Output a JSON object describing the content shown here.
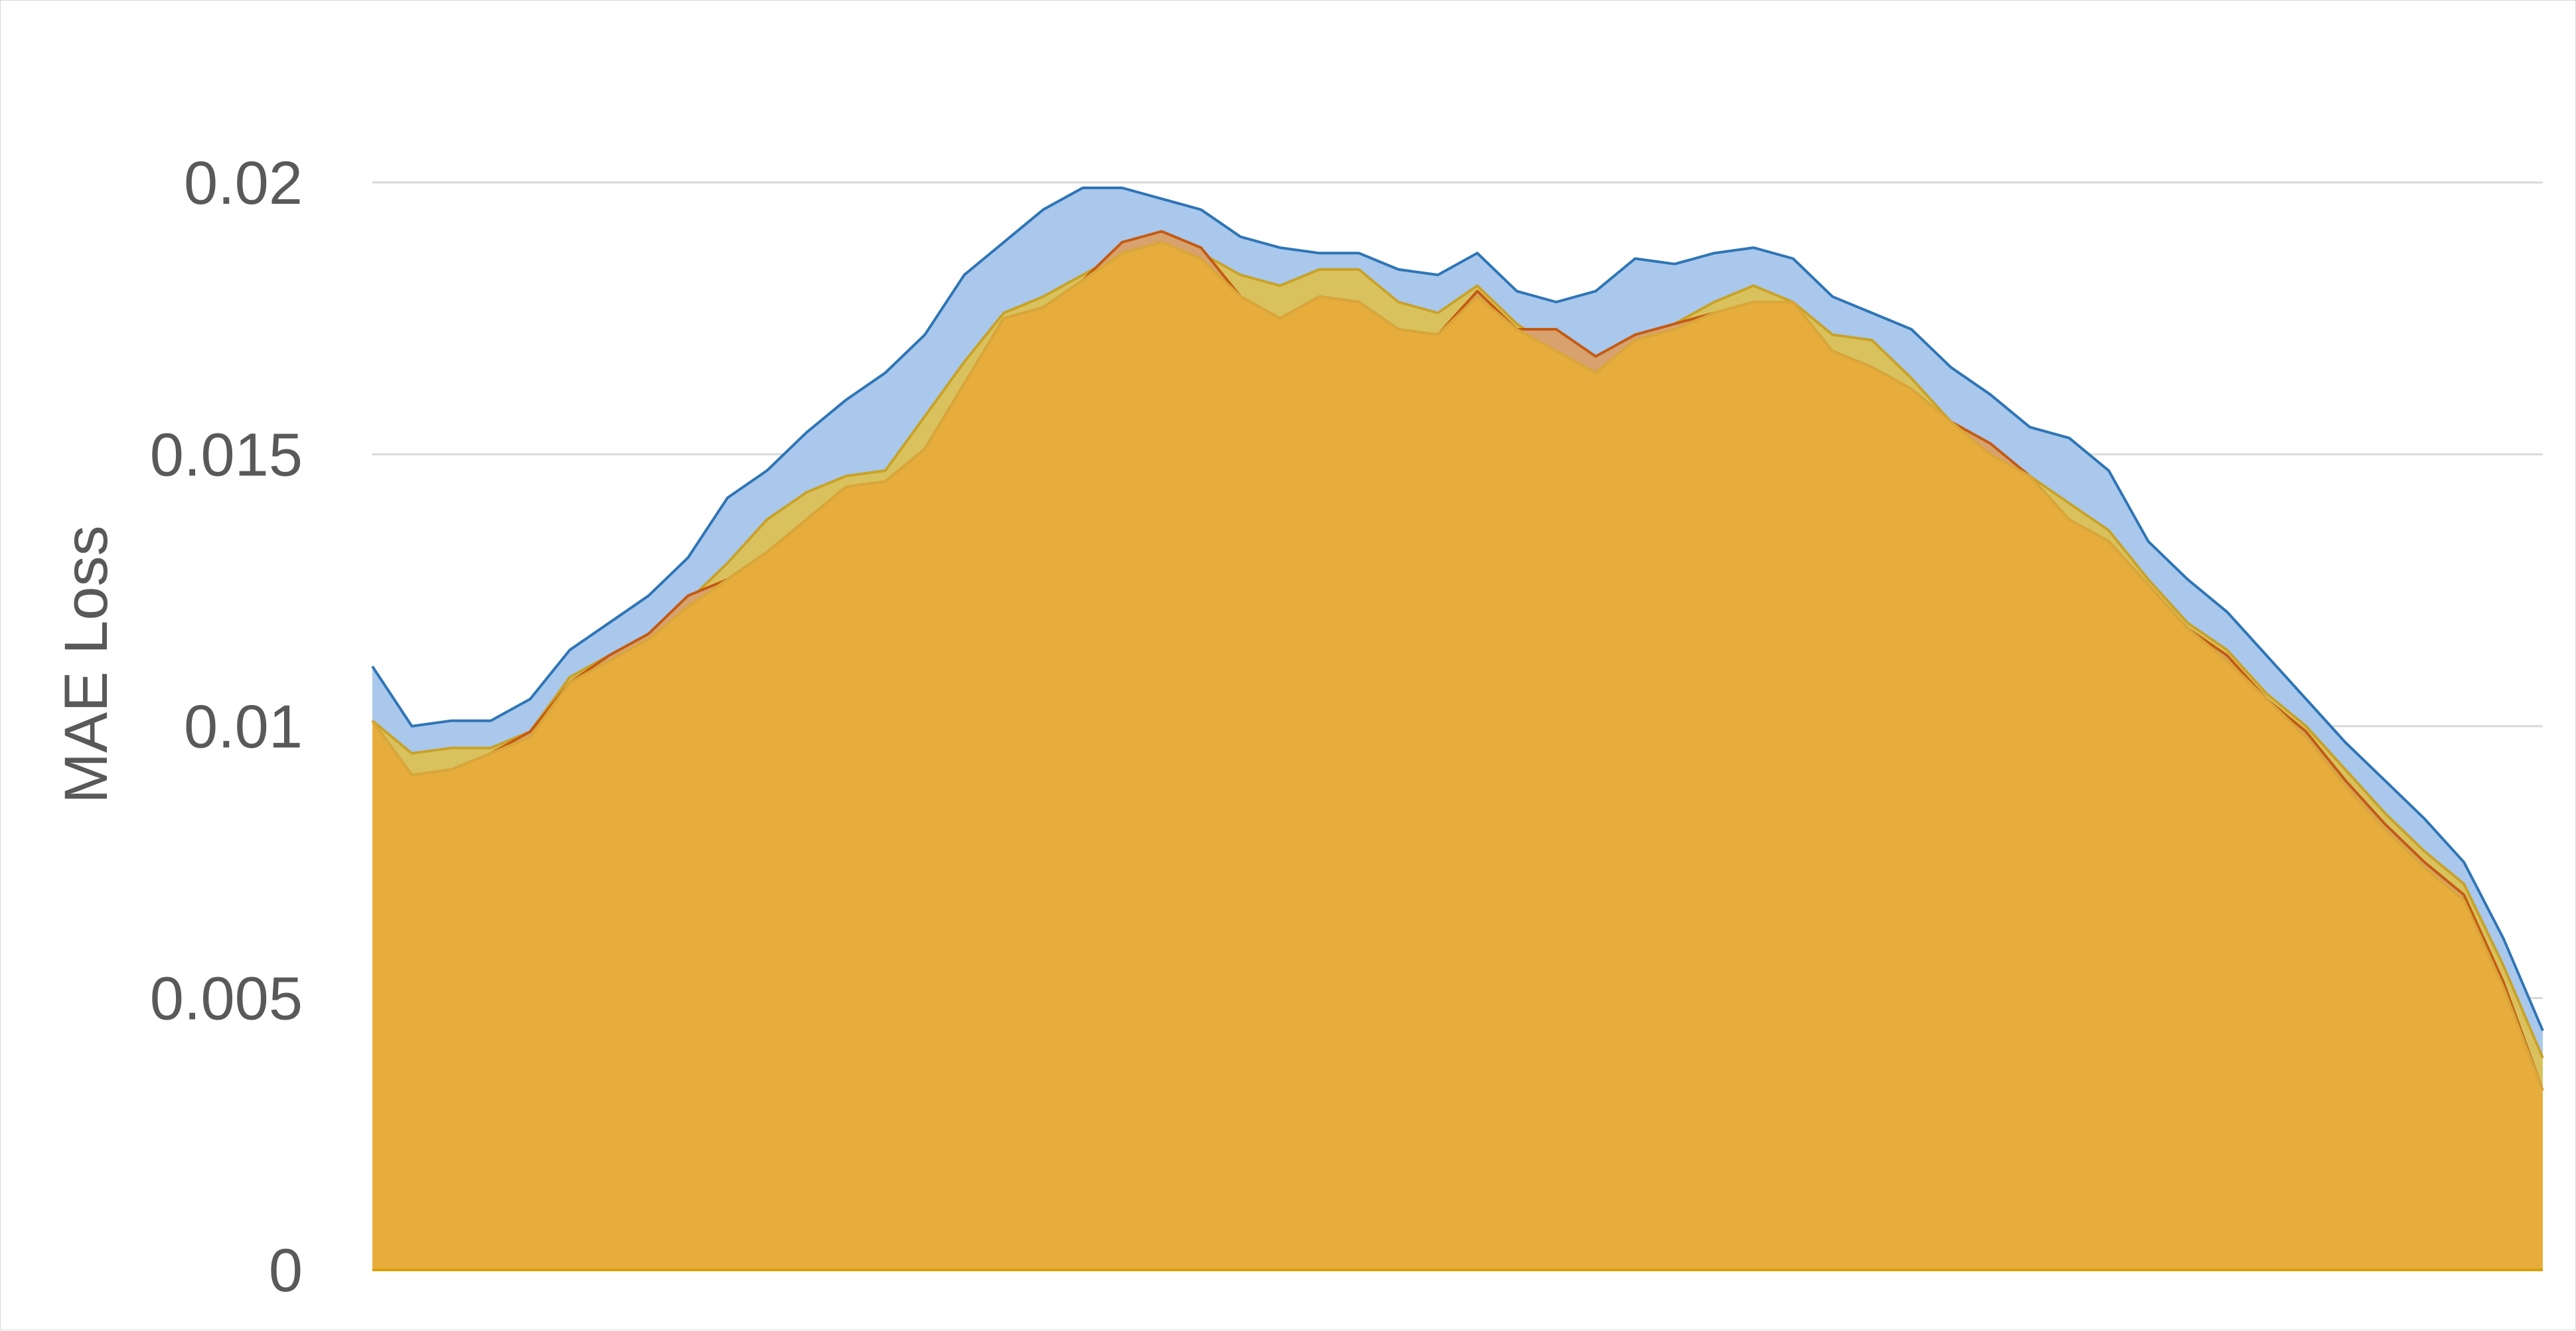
{
  "chart_data": {
    "type": "area",
    "title": "",
    "xlabel": "",
    "ylabel": "MAE Loss",
    "ylim": [
      0,
      0.022
    ],
    "yticks": [
      0,
      0.005,
      0.01,
      0.015,
      0.02
    ],
    "ytick_labels": [
      "0",
      "0.005",
      "0.01",
      "0.015",
      "0.02"
    ],
    "grid": true,
    "x": [
      1,
      2,
      3,
      4,
      5,
      6,
      7,
      8,
      9,
      10,
      11,
      12,
      13,
      14,
      15,
      16,
      17,
      18,
      19,
      20,
      21,
      22,
      23,
      24,
      25,
      26,
      27,
      28,
      29,
      30,
      31,
      32,
      33,
      34,
      35,
      36,
      37,
      38,
      39,
      40,
      41,
      42,
      43,
      44,
      45,
      46,
      47,
      48,
      49,
      50,
      51,
      52,
      53,
      54,
      55,
      56
    ],
    "series": [
      {
        "color": "#a9c8ec",
        "line_color": "#2e75b6",
        "values": [
          0.0111,
          0.01,
          0.0101,
          0.0101,
          0.0105,
          0.0114,
          0.0119,
          0.0124,
          0.0131,
          0.0142,
          0.0147,
          0.0154,
          0.016,
          0.0165,
          0.0172,
          0.0183,
          0.0189,
          0.0195,
          0.0199,
          0.0199,
          0.0197,
          0.0195,
          0.019,
          0.0188,
          0.0187,
          0.0187,
          0.0184,
          0.0183,
          0.0187,
          0.018,
          0.0178,
          0.018,
          0.0186,
          0.0185,
          0.0187,
          0.0188,
          0.0186,
          0.0179,
          0.0176,
          0.0173,
          0.0166,
          0.0161,
          0.0155,
          0.0153,
          0.0147,
          0.0134,
          0.0127,
          0.0121,
          0.0113,
          0.0105,
          0.0097,
          0.009,
          0.0083,
          0.0075,
          0.0061,
          0.0044
        ]
      },
      {
        "color": "#d9c25e",
        "line_color": "#c9a227",
        "values": [
          0.0101,
          0.0095,
          0.0096,
          0.0096,
          0.0099,
          0.0109,
          0.0113,
          0.0117,
          0.0123,
          0.013,
          0.0138,
          0.0143,
          0.0146,
          0.0147,
          0.0157,
          0.0167,
          0.0176,
          0.0179,
          0.0183,
          0.0187,
          0.0189,
          0.0187,
          0.0183,
          0.0181,
          0.0184,
          0.0184,
          0.0178,
          0.0176,
          0.0181,
          0.0174,
          0.0169,
          0.0165,
          0.0171,
          0.0174,
          0.0178,
          0.0181,
          0.0178,
          0.0172,
          0.0171,
          0.0164,
          0.0156,
          0.0151,
          0.0146,
          0.0141,
          0.0136,
          0.0127,
          0.0119,
          0.0114,
          0.0106,
          0.01,
          0.0092,
          0.0084,
          0.0077,
          0.0071,
          0.0056,
          0.0039
        ]
      },
      {
        "color": "#d7a26e",
        "line_color": "#c55a11",
        "values": [
          0.0101,
          0.0091,
          0.0092,
          0.0095,
          0.0099,
          0.0108,
          0.0113,
          0.0117,
          0.0124,
          0.0127,
          0.0132,
          0.0138,
          0.0144,
          0.0145,
          0.0151,
          0.0163,
          0.0175,
          0.0177,
          0.0182,
          0.0189,
          0.0191,
          0.0188,
          0.0179,
          0.0175,
          0.0179,
          0.0178,
          0.0173,
          0.0172,
          0.018,
          0.0173,
          0.0173,
          0.0168,
          0.0172,
          0.0174,
          0.0176,
          0.0178,
          0.0177,
          0.0169,
          0.0166,
          0.0162,
          0.0156,
          0.0152,
          0.0146,
          0.0138,
          0.0134,
          0.0126,
          0.0118,
          0.0113,
          0.0105,
          0.0099,
          0.009,
          0.0082,
          0.0075,
          0.0069,
          0.0053,
          0.0033
        ]
      },
      {
        "color": "#e6ad3c",
        "line_color": "#d9a63a",
        "values": [
          0.0101,
          0.0091,
          0.0092,
          0.0095,
          0.0098,
          0.0108,
          0.0112,
          0.0116,
          0.0122,
          0.0127,
          0.0132,
          0.0138,
          0.0144,
          0.0145,
          0.0151,
          0.0163,
          0.0175,
          0.0177,
          0.0182,
          0.0187,
          0.0189,
          0.0186,
          0.0179,
          0.0175,
          0.0179,
          0.0178,
          0.0173,
          0.0172,
          0.0179,
          0.0173,
          0.0169,
          0.0165,
          0.0171,
          0.0173,
          0.0176,
          0.0178,
          0.0178,
          0.0169,
          0.0166,
          0.0162,
          0.0156,
          0.015,
          0.0146,
          0.0138,
          0.0134,
          0.0126,
          0.0118,
          0.0112,
          0.0105,
          0.0098,
          0.0089,
          0.0081,
          0.0074,
          0.0068,
          0.0052,
          0.0033
        ]
      }
    ]
  }
}
